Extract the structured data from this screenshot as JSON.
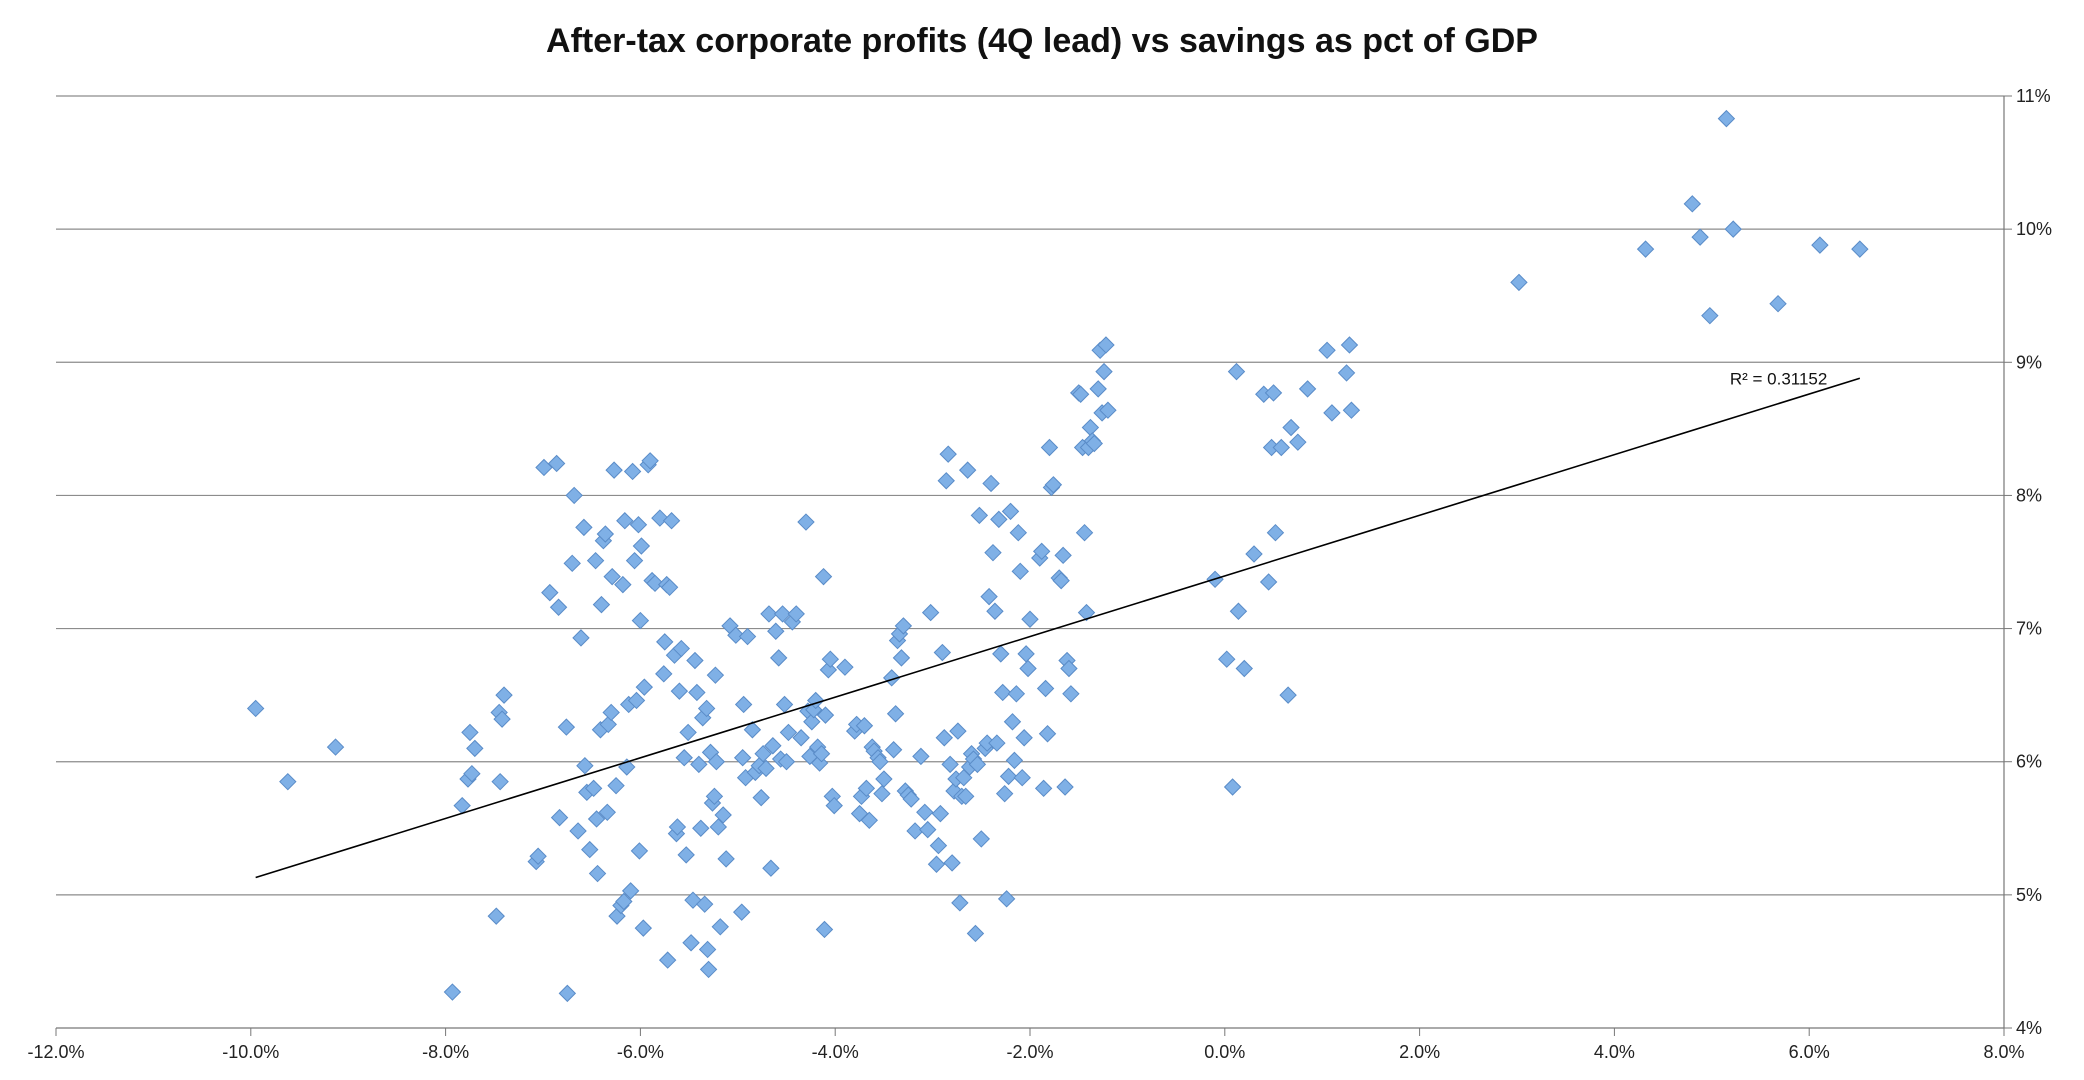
{
  "chart_data": {
    "type": "scatter",
    "title": "After-tax corporate profits (4Q lead) vs savings as pct of GDP",
    "xlabel": "",
    "ylabel": "",
    "xlim": [
      -0.12,
      0.08
    ],
    "ylim": [
      0.04,
      0.11
    ],
    "x_ticks": [
      "-12.0%",
      "-10.0%",
      "-8.0%",
      "-6.0%",
      "-4.0%",
      "-2.0%",
      "0.0%",
      "2.0%",
      "4.0%",
      "6.0%",
      "8.0%"
    ],
    "y_ticks": [
      "4%",
      "5%",
      "6%",
      "7%",
      "8%",
      "9%",
      "10%",
      "11%"
    ],
    "grid": "horizontal",
    "marker_color": "#7fb0e6",
    "marker_edge": "#5a8cc8",
    "trendline": {
      "x": [
        -0.0995,
        0.0652
      ],
      "y": [
        0.0513,
        0.0888
      ],
      "label": "R² = 0.31152"
    },
    "points": [
      [
        -0.0995,
        0.064
      ],
      [
        -0.0962,
        0.0585
      ],
      [
        -0.0913,
        0.0611
      ],
      [
        -0.0793,
        0.0427
      ],
      [
        -0.0783,
        0.0567
      ],
      [
        -0.0777,
        0.0587
      ],
      [
        -0.0775,
        0.0622
      ],
      [
        -0.0773,
        0.0591
      ],
      [
        -0.077,
        0.061
      ],
      [
        -0.0748,
        0.0484
      ],
      [
        -0.0745,
        0.0637
      ],
      [
        -0.0744,
        0.0585
      ],
      [
        -0.0742,
        0.0632
      ],
      [
        -0.074,
        0.065
      ],
      [
        -0.0707,
        0.0525
      ],
      [
        -0.0705,
        0.0529
      ],
      [
        -0.0699,
        0.0821
      ],
      [
        -0.0693,
        0.0727
      ],
      [
        -0.0686,
        0.0824
      ],
      [
        -0.0684,
        0.0716
      ],
      [
        -0.0683,
        0.0558
      ],
      [
        -0.0676,
        0.0626
      ],
      [
        -0.0675,
        0.0426
      ],
      [
        -0.067,
        0.0749
      ],
      [
        -0.0668,
        0.08
      ],
      [
        -0.0664,
        0.0548
      ],
      [
        -0.0661,
        0.0693
      ],
      [
        -0.0658,
        0.0776
      ],
      [
        -0.0657,
        0.0597
      ],
      [
        -0.0655,
        0.0577
      ],
      [
        -0.0652,
        0.0534
      ],
      [
        -0.0648,
        0.058
      ],
      [
        -0.0646,
        0.0751
      ],
      [
        -0.0645,
        0.0557
      ],
      [
        -0.0644,
        0.0516
      ],
      [
        -0.0641,
        0.0624
      ],
      [
        -0.064,
        0.0718
      ],
      [
        -0.0638,
        0.0766
      ],
      [
        -0.0636,
        0.0771
      ],
      [
        -0.0634,
        0.0562
      ],
      [
        -0.0633,
        0.0628
      ],
      [
        -0.063,
        0.0637
      ],
      [
        -0.0629,
        0.0739
      ],
      [
        -0.0627,
        0.0819
      ],
      [
        -0.0625,
        0.0582
      ],
      [
        -0.0624,
        0.0484
      ],
      [
        -0.062,
        0.0492
      ],
      [
        -0.0618,
        0.0733
      ],
      [
        -0.0617,
        0.0495
      ],
      [
        -0.0616,
        0.0781
      ],
      [
        -0.0614,
        0.0596
      ],
      [
        -0.0612,
        0.0643
      ],
      [
        -0.061,
        0.0503
      ],
      [
        -0.0608,
        0.0818
      ],
      [
        -0.0606,
        0.0751
      ],
      [
        -0.0604,
        0.0646
      ],
      [
        -0.0602,
        0.0778
      ],
      [
        -0.0601,
        0.0533
      ],
      [
        -0.06,
        0.0706
      ],
      [
        -0.0599,
        0.0762
      ],
      [
        -0.0597,
        0.0475
      ],
      [
        -0.0596,
        0.0656
      ],
      [
        -0.0592,
        0.0823
      ],
      [
        -0.059,
        0.0826
      ],
      [
        -0.0588,
        0.0736
      ],
      [
        -0.0585,
        0.0734
      ],
      [
        -0.058,
        0.0783
      ],
      [
        -0.0576,
        0.0666
      ],
      [
        -0.0575,
        0.069
      ],
      [
        -0.0573,
        0.0733
      ],
      [
        -0.0572,
        0.0451
      ],
      [
        -0.057,
        0.0731
      ],
      [
        -0.0568,
        0.0781
      ],
      [
        -0.0565,
        0.068
      ],
      [
        -0.0563,
        0.0546
      ],
      [
        -0.0562,
        0.0551
      ],
      [
        -0.056,
        0.0653
      ],
      [
        -0.0558,
        0.0685
      ],
      [
        -0.0555,
        0.0603
      ],
      [
        -0.0553,
        0.053
      ],
      [
        -0.0551,
        0.0622
      ],
      [
        -0.0548,
        0.0464
      ],
      [
        -0.0546,
        0.0496
      ],
      [
        -0.0544,
        0.0676
      ],
      [
        -0.0542,
        0.0652
      ],
      [
        -0.054,
        0.0598
      ],
      [
        -0.0538,
        0.055
      ],
      [
        -0.0536,
        0.0633
      ],
      [
        -0.0534,
        0.0493
      ],
      [
        -0.0532,
        0.064
      ],
      [
        -0.0531,
        0.0459
      ],
      [
        -0.053,
        0.0444
      ],
      [
        -0.0528,
        0.0607
      ],
      [
        -0.0526,
        0.0569
      ],
      [
        -0.0524,
        0.0574
      ],
      [
        -0.0523,
        0.0665
      ],
      [
        -0.0522,
        0.06
      ],
      [
        -0.052,
        0.0551
      ],
      [
        -0.0518,
        0.0476
      ],
      [
        -0.0515,
        0.056
      ],
      [
        -0.0512,
        0.0527
      ],
      [
        -0.0508,
        0.0702
      ],
      [
        -0.0502,
        0.0695
      ],
      [
        -0.0496,
        0.0487
      ],
      [
        -0.0495,
        0.0603
      ],
      [
        -0.0494,
        0.0643
      ],
      [
        -0.0492,
        0.0588
      ],
      [
        -0.049,
        0.0694
      ],
      [
        -0.0485,
        0.0624
      ],
      [
        -0.0482,
        0.0592
      ],
      [
        -0.0478,
        0.0597
      ],
      [
        -0.0476,
        0.0573
      ],
      [
        -0.0474,
        0.0606
      ],
      [
        -0.0471,
        0.0595
      ],
      [
        -0.0468,
        0.0711
      ],
      [
        -0.0466,
        0.052
      ],
      [
        -0.0464,
        0.0612
      ],
      [
        -0.0461,
        0.0698
      ],
      [
        -0.0458,
        0.0678
      ],
      [
        -0.0456,
        0.0602
      ],
      [
        -0.0454,
        0.0711
      ],
      [
        -0.0452,
        0.0643
      ],
      [
        -0.045,
        0.06
      ],
      [
        -0.0448,
        0.0622
      ],
      [
        -0.0444,
        0.0705
      ],
      [
        -0.044,
        0.0711
      ],
      [
        -0.0435,
        0.0618
      ],
      [
        -0.043,
        0.078
      ],
      [
        -0.0428,
        0.0638
      ],
      [
        -0.0426,
        0.0604
      ],
      [
        -0.0424,
        0.063
      ],
      [
        -0.0422,
        0.0639
      ],
      [
        -0.042,
        0.0646
      ],
      [
        -0.0418,
        0.0611
      ],
      [
        -0.0416,
        0.0599
      ],
      [
        -0.0414,
        0.0606
      ],
      [
        -0.0412,
        0.0739
      ],
      [
        -0.0411,
        0.0474
      ],
      [
        -0.041,
        0.0635
      ],
      [
        -0.0407,
        0.0669
      ],
      [
        -0.0405,
        0.0677
      ],
      [
        -0.0403,
        0.0574
      ],
      [
        -0.0401,
        0.0567
      ],
      [
        -0.039,
        0.0671
      ],
      [
        -0.038,
        0.0623
      ],
      [
        -0.0378,
        0.0628
      ],
      [
        -0.0375,
        0.0561
      ],
      [
        -0.0373,
        0.0574
      ],
      [
        -0.037,
        0.0627
      ],
      [
        -0.0368,
        0.058
      ],
      [
        -0.0365,
        0.0556
      ],
      [
        -0.0362,
        0.0611
      ],
      [
        -0.036,
        0.0608
      ],
      [
        -0.0356,
        0.0603
      ],
      [
        -0.0354,
        0.06
      ],
      [
        -0.0352,
        0.0576
      ],
      [
        -0.035,
        0.0587
      ],
      [
        -0.0342,
        0.0663
      ],
      [
        -0.034,
        0.0609
      ],
      [
        -0.0338,
        0.0636
      ],
      [
        -0.0336,
        0.0691
      ],
      [
        -0.0334,
        0.0696
      ],
      [
        -0.0332,
        0.0678
      ],
      [
        -0.033,
        0.0702
      ],
      [
        -0.0328,
        0.0578
      ],
      [
        -0.0325,
        0.0575
      ],
      [
        -0.0322,
        0.0572
      ],
      [
        -0.0318,
        0.0548
      ],
      [
        -0.0312,
        0.0604
      ],
      [
        -0.0308,
        0.0562
      ],
      [
        -0.0305,
        0.0549
      ],
      [
        -0.0302,
        0.0712
      ],
      [
        -0.0296,
        0.0523
      ],
      [
        -0.0294,
        0.0537
      ],
      [
        -0.0292,
        0.0561
      ],
      [
        -0.029,
        0.0682
      ],
      [
        -0.0288,
        0.0618
      ],
      [
        -0.0286,
        0.0811
      ],
      [
        -0.0284,
        0.0831
      ],
      [
        -0.0282,
        0.0598
      ],
      [
        -0.028,
        0.0524
      ],
      [
        -0.0278,
        0.0578
      ],
      [
        -0.0276,
        0.0587
      ],
      [
        -0.0274,
        0.0623
      ],
      [
        -0.0272,
        0.0494
      ],
      [
        -0.027,
        0.0574
      ],
      [
        -0.0268,
        0.0588
      ],
      [
        -0.0266,
        0.0574
      ],
      [
        -0.0264,
        0.0819
      ],
      [
        -0.0262,
        0.0596
      ],
      [
        -0.026,
        0.0606
      ],
      [
        -0.0258,
        0.0602
      ],
      [
        -0.0256,
        0.0471
      ],
      [
        -0.0254,
        0.0598
      ],
      [
        -0.0252,
        0.0785
      ],
      [
        -0.025,
        0.0542
      ],
      [
        -0.0246,
        0.061
      ],
      [
        -0.0244,
        0.0614
      ],
      [
        -0.0242,
        0.0724
      ],
      [
        -0.024,
        0.0809
      ],
      [
        -0.0238,
        0.0757
      ],
      [
        -0.0236,
        0.0713
      ],
      [
        -0.0234,
        0.0614
      ],
      [
        -0.0232,
        0.0782
      ],
      [
        -0.023,
        0.0681
      ],
      [
        -0.0228,
        0.0652
      ],
      [
        -0.0226,
        0.0576
      ],
      [
        -0.0224,
        0.0497
      ],
      [
        -0.0222,
        0.0589
      ],
      [
        -0.022,
        0.0788
      ],
      [
        -0.0218,
        0.063
      ],
      [
        -0.0216,
        0.0601
      ],
      [
        -0.0214,
        0.0651
      ],
      [
        -0.0212,
        0.0772
      ],
      [
        -0.021,
        0.0743
      ],
      [
        -0.0208,
        0.0588
      ],
      [
        -0.0206,
        0.0618
      ],
      [
        -0.0204,
        0.0681
      ],
      [
        -0.0202,
        0.067
      ],
      [
        -0.02,
        0.0707
      ],
      [
        -0.019,
        0.0753
      ],
      [
        -0.0188,
        0.0758
      ],
      [
        -0.0186,
        0.058
      ],
      [
        -0.0184,
        0.0655
      ],
      [
        -0.0182,
        0.0621
      ],
      [
        -0.018,
        0.0836
      ],
      [
        -0.0178,
        0.0806
      ],
      [
        -0.0176,
        0.0808
      ],
      [
        -0.017,
        0.0738
      ],
      [
        -0.0168,
        0.0736
      ],
      [
        -0.0166,
        0.0755
      ],
      [
        -0.0164,
        0.0581
      ],
      [
        -0.0162,
        0.0676
      ],
      [
        -0.016,
        0.067
      ],
      [
        -0.0158,
        0.0651
      ],
      [
        -0.015,
        0.0877
      ],
      [
        -0.0148,
        0.0876
      ],
      [
        -0.0146,
        0.0836
      ],
      [
        -0.0144,
        0.0772
      ],
      [
        -0.0142,
        0.0712
      ],
      [
        -0.014,
        0.0836
      ],
      [
        -0.0138,
        0.0851
      ],
      [
        -0.0136,
        0.0841
      ],
      [
        -0.0134,
        0.0839
      ],
      [
        -0.013,
        0.088
      ],
      [
        -0.0128,
        0.0909
      ],
      [
        -0.0126,
        0.0862
      ],
      [
        -0.0124,
        0.0893
      ],
      [
        -0.0122,
        0.0913
      ],
      [
        -0.012,
        0.0864
      ],
      [
        -0.001,
        0.0737
      ],
      [
        0.0002,
        0.0677
      ],
      [
        0.0008,
        0.0581
      ],
      [
        0.0012,
        0.0893
      ],
      [
        0.0014,
        0.0713
      ],
      [
        0.002,
        0.067
      ],
      [
        0.003,
        0.0756
      ],
      [
        0.004,
        0.0876
      ],
      [
        0.0045,
        0.0735
      ],
      [
        0.0048,
        0.0836
      ],
      [
        0.005,
        0.0877
      ],
      [
        0.0052,
        0.0772
      ],
      [
        0.0058,
        0.0836
      ],
      [
        0.0065,
        0.065
      ],
      [
        0.0068,
        0.0851
      ],
      [
        0.0075,
        0.084
      ],
      [
        0.0085,
        0.088
      ],
      [
        0.0105,
        0.0909
      ],
      [
        0.011,
        0.0862
      ],
      [
        0.0125,
        0.0892
      ],
      [
        0.0128,
        0.0913
      ],
      [
        0.013,
        0.0864
      ],
      [
        0.0302,
        0.096
      ],
      [
        0.0432,
        0.0985
      ],
      [
        0.048,
        0.1019
      ],
      [
        0.0488,
        0.0994
      ],
      [
        0.0498,
        0.0935
      ],
      [
        0.0515,
        0.1083
      ],
      [
        0.0522,
        0.1
      ],
      [
        0.0568,
        0.0944
      ],
      [
        0.0611,
        0.0988
      ],
      [
        0.0652,
        0.0985
      ]
    ]
  }
}
